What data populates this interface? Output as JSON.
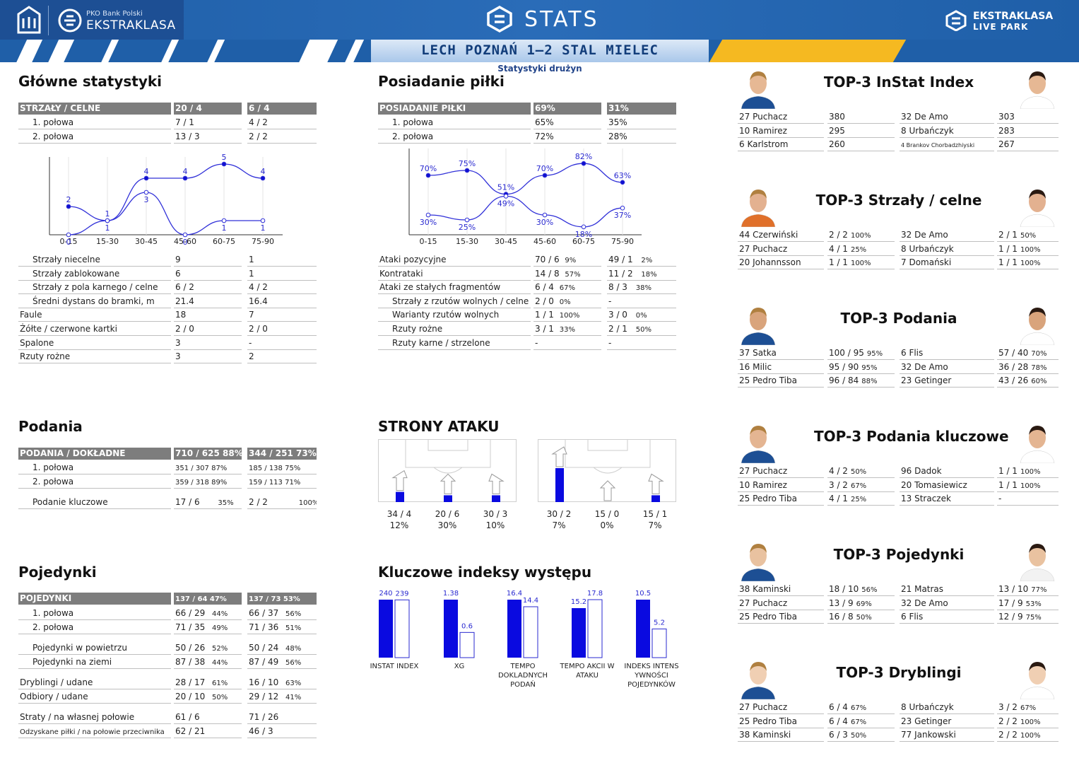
{
  "header": {
    "stats": "STATS",
    "brand_small": "PKO Bank Polski",
    "brand_big": "EKSTRAKLASA",
    "live1": "EKSTRAKLASA",
    "live2": "LIVE PARK",
    "match": "LECH POZNAŃ 1–2 STAL MIELEC",
    "subtitle": "Statystyki drużyn"
  },
  "titles": {
    "main": "Główne statystyki",
    "possession": "Posiadanie piłki",
    "passes": "Podania",
    "duels": "Pojedynki",
    "attack": "STRONY ATAKU",
    "key": "Kluczowe indeksy występu"
  },
  "main_stats": {
    "header": [
      "STRZAŁY / CELNE",
      "20 / 4",
      "6 / 4"
    ],
    "halves": [
      [
        "1. połowa",
        "7 / 1",
        "4 / 2"
      ],
      [
        "2. połowa",
        "13 / 3",
        "2 / 2"
      ]
    ],
    "rows": [
      [
        "Strzały niecelne",
        "9",
        "1"
      ],
      [
        "Strzały zablokowane",
        "6",
        "1"
      ],
      [
        "Strzały z pola karnego / celne",
        "6 / 2",
        "4 / 2"
      ],
      [
        "Średni dystans do bramki, m",
        "21.4",
        "16.4"
      ],
      [
        "Faule",
        "18",
        "7"
      ],
      [
        "Żółte / czerwone kartki",
        "2 / 0",
        "2 / 0"
      ],
      [
        "Spalone",
        "3",
        "-"
      ],
      [
        "Rzuty rożne",
        "3",
        "2"
      ]
    ]
  },
  "possession": {
    "header": [
      "POSIADANIE PIŁKI",
      "69%",
      "31%"
    ],
    "halves": [
      [
        "1. połowa",
        "65%",
        "35%"
      ],
      [
        "2. połowa",
        "72%",
        "28%"
      ]
    ],
    "rows": [
      [
        "Ataki pozycyjne",
        "70 / 6",
        "9%",
        "49 / 1",
        "2%"
      ],
      [
        "Kontrataki",
        "14 / 8",
        "57%",
        "11 / 2",
        "18%"
      ],
      [
        "Ataki ze stałych fragmentów",
        "6 / 4",
        "67%",
        "8 / 3",
        "38%"
      ],
      [
        "Strzały z rzutów wolnych / celne",
        "2 / 0",
        "0%",
        "-",
        ""
      ],
      [
        "Warianty rzutów wolnych",
        "1 / 1",
        "100%",
        "3 / 0",
        "0%"
      ],
      [
        "Rzuty rożne",
        "3 / 1",
        "33%",
        "2 / 1",
        "50%"
      ],
      [
        "Rzuty karne / strzelone",
        "-",
        "",
        "-",
        ""
      ]
    ]
  },
  "passes": {
    "header": [
      "PODANIA / DOKŁADNE",
      "710 / 625 88%",
      "344 / 251 73%"
    ],
    "halves": [
      [
        "1. połowa",
        "351 / 307 87%",
        "185 / 138 75%"
      ],
      [
        "2. połowa",
        "359 / 318 89%",
        "159 / 113 71%"
      ]
    ],
    "key": [
      "Podanie kluczowe",
      "17 / 6",
      "35%",
      "2 / 2",
      "100%"
    ]
  },
  "duels": {
    "header": [
      "POJEDYNKI",
      "137 / 64 47%",
      "137 / 73 53%"
    ],
    "halves": [
      [
        "1. połowa",
        "66 / 29",
        "44%",
        "66 / 37",
        "56%"
      ],
      [
        "2. połowa",
        "71 / 35",
        "49%",
        "71 / 36",
        "51%"
      ]
    ],
    "rows": [
      [
        "Pojedynki w powietrzu",
        "50 / 26",
        "52%",
        "50 / 24",
        "48%"
      ],
      [
        "Pojedynki na ziemi",
        "87 / 38",
        "44%",
        "87 / 49",
        "56%"
      ],
      [
        "Dryblingi / udane",
        "28 / 17",
        "61%",
        "16 / 10",
        "63%"
      ],
      [
        "Odbiory / udane",
        "20 / 10",
        "50%",
        "29 / 12",
        "41%"
      ],
      [
        "Straty / na własnej połowie",
        "61 / 6",
        "",
        "71 / 26",
        ""
      ],
      [
        "Odzyskane piłki / na połowie przeciwnika",
        "62 / 21",
        "",
        "46 / 3",
        ""
      ]
    ]
  },
  "chart_data": [
    {
      "type": "line",
      "categories": [
        "0-15",
        "15-30",
        "30-45",
        "45-60",
        "60-75",
        "75-90"
      ],
      "series": [
        {
          "values": [
            2,
            1,
            4,
            4,
            5,
            4
          ]
        },
        {
          "values": [
            0,
            1,
            3,
            0,
            1,
            1
          ]
        }
      ],
      "ylim": [
        0,
        5
      ]
    },
    {
      "type": "line",
      "categories": [
        "0-15",
        "15-30",
        "30-45",
        "45-60",
        "60-75",
        "75-90"
      ],
      "series": [
        {
          "values": [
            70,
            75,
            51,
            70,
            82,
            63
          ]
        },
        {
          "values": [
            30,
            25,
            49,
            30,
            18,
            37
          ]
        }
      ],
      "ylim": [
        10,
        90
      ]
    },
    {
      "type": "bar",
      "categories": [
        "INSTAT INDEX",
        "XG",
        "TEMPO DOKLADNYCH PODAŃ",
        "TEMPO AKCII W ATAKU",
        "INDEKS INTENS YWNOŚCI POJEDYNKÓW"
      ],
      "series": [
        {
          "values": [
            240,
            1.38,
            16.4,
            15.2,
            10.5
          ]
        },
        {
          "values": [
            239,
            0.6,
            14.4,
            17.8,
            5.2
          ]
        }
      ]
    }
  ],
  "attack": {
    "home": [
      [
        "34 / 4",
        "12%"
      ],
      [
        "20 / 6",
        "30%"
      ],
      [
        "30 / 3",
        "10%"
      ]
    ],
    "away": [
      [
        "30 / 2",
        "7%"
      ],
      [
        "15 / 0",
        "0%"
      ],
      [
        "15 / 1",
        "7%"
      ]
    ],
    "home_bars": [
      0.3,
      0.2,
      0.2
    ],
    "away_bars": [
      1,
      0,
      0.2
    ]
  },
  "tops": [
    {
      "title": "TOP-3 InStat Index",
      "rows": [
        [
          "27 Puchacz",
          "380",
          "",
          "32 De Amo",
          "303",
          ""
        ],
        [
          "10 Ramirez",
          "295",
          "",
          "8  Urbańczyk",
          "283",
          ""
        ],
        [
          "6  Karlstrom",
          "260",
          "",
          "4  Brankov Chorbadzhiyski",
          "267",
          ""
        ]
      ]
    },
    {
      "title": "TOP-3 Strzały / celne",
      "rows": [
        [
          "44 Czerwiński",
          "2 / 2",
          "100%",
          "32 De Amo",
          "2 / 1",
          "50%"
        ],
        [
          "27 Puchacz",
          "4 / 1",
          "25%",
          "8  Urbańczyk",
          "1 / 1",
          "100%"
        ],
        [
          "20 Johannsson",
          "1 / 1",
          "100%",
          "7  Domański",
          "1 / 1",
          "100%"
        ]
      ]
    },
    {
      "title": "TOP-3 Podania",
      "rows": [
        [
          "37 Satka",
          "100 / 95",
          "95%",
          "6  Flis",
          "57 / 40",
          "70%"
        ],
        [
          "16 Milic",
          "95 / 90",
          "95%",
          "32 De Amo",
          "36 / 28",
          "78%"
        ],
        [
          "25 Pedro Tiba",
          "96 / 84",
          "88%",
          "23 Getinger",
          "43 / 26",
          "60%"
        ]
      ]
    },
    {
      "title": "TOP-3 Podania kluczowe",
      "rows": [
        [
          "27 Puchacz",
          "4 / 2",
          "50%",
          "96 Dadok",
          "1 / 1",
          "100%"
        ],
        [
          "10 Ramirez",
          "3 / 2",
          "67%",
          "20 Tomasiewicz",
          "1 / 1",
          "100%"
        ],
        [
          "25 Pedro Tiba",
          "4 / 1",
          "25%",
          "13 Straczek",
          "-",
          ""
        ]
      ]
    },
    {
      "title": "TOP-3 Pojedynki",
      "rows": [
        [
          "38 Kaminski",
          "18 / 10",
          "56%",
          "21 Matras",
          "13 / 10",
          "77%"
        ],
        [
          "27 Puchacz",
          "13 / 9",
          "69%",
          "32 De Amo",
          "17 / 9",
          "53%"
        ],
        [
          "25 Pedro Tiba",
          "16 / 8",
          "50%",
          "6  Flis",
          "12 / 9",
          "75%"
        ]
      ]
    },
    {
      "title": "TOP-3 Dryblingi",
      "rows": [
        [
          "27 Puchacz",
          "6 / 4",
          "67%",
          "8  Urbańczyk",
          "3 / 2",
          "67%"
        ],
        [
          "25 Pedro Tiba",
          "6 / 4",
          "67%",
          "23 Getinger",
          "2 / 2",
          "100%"
        ],
        [
          "38 Kaminski",
          "6 / 3",
          "50%",
          "77 Jankowski",
          "2 / 2",
          "100%"
        ]
      ]
    }
  ],
  "colors": {
    "home": "#0a0ae0",
    "header_blue": "#1f5fa8",
    "yellow": "#f5b921",
    "table_header": "#7d7d7d"
  }
}
